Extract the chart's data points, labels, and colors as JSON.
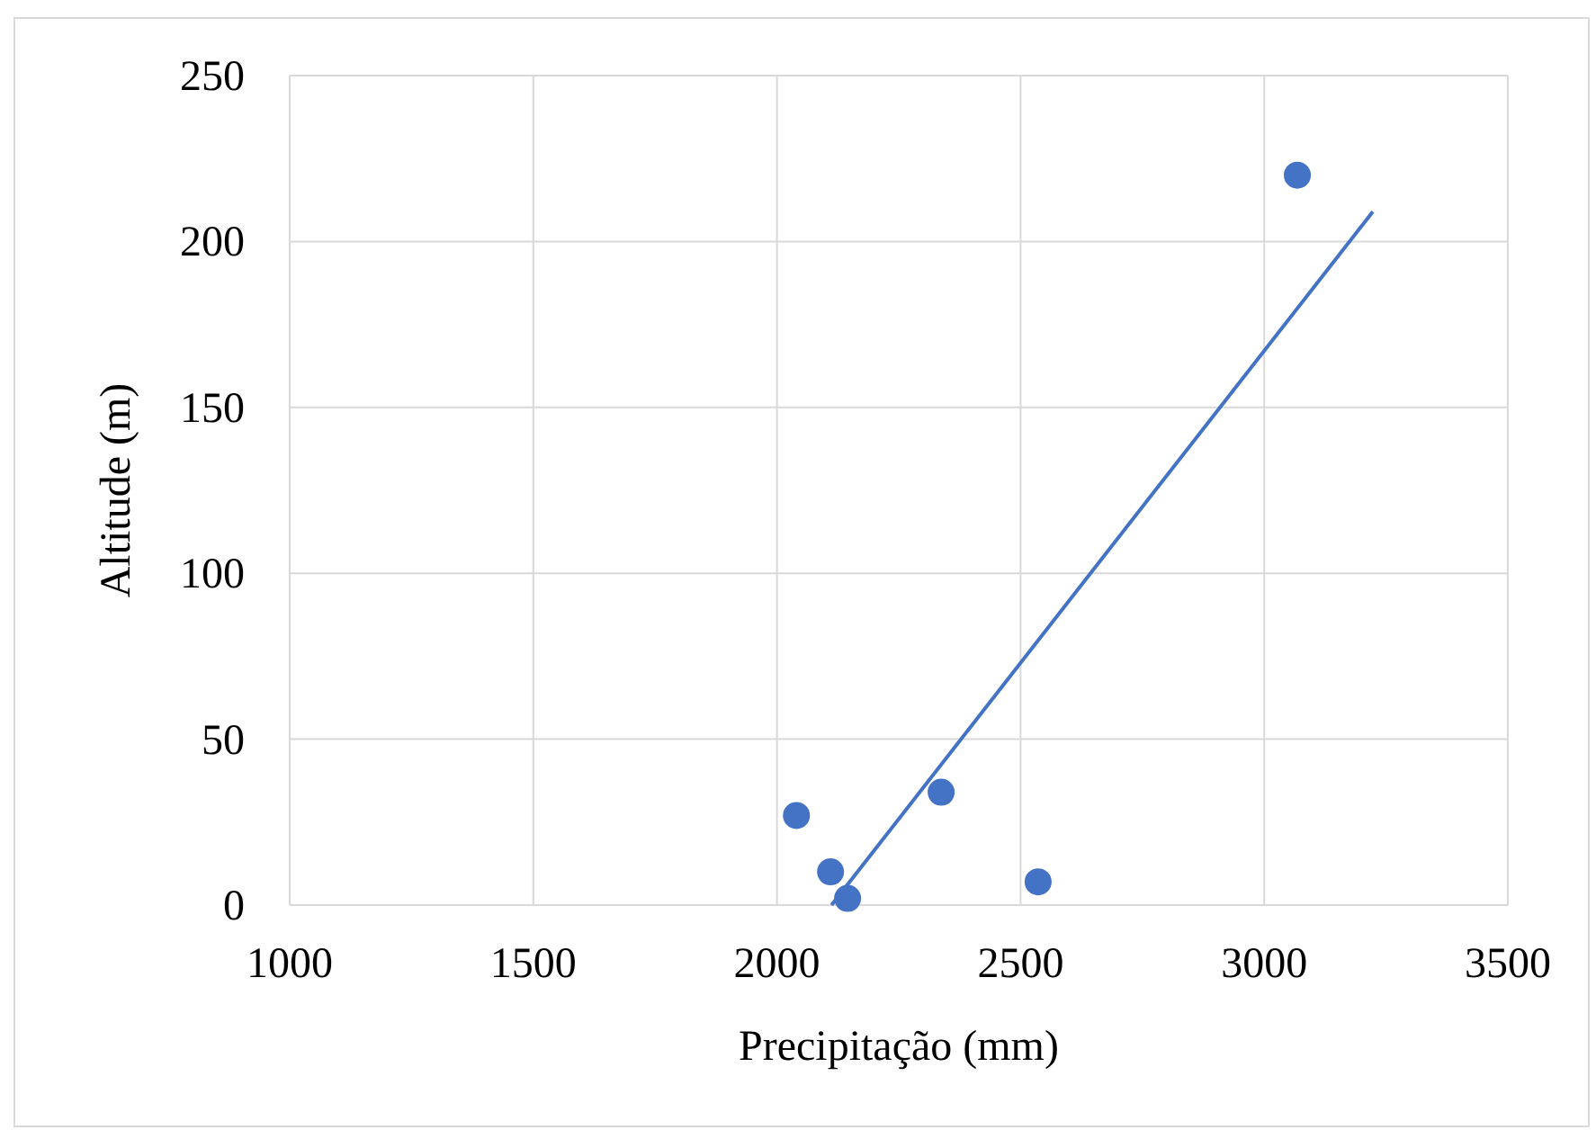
{
  "chart_data": {
    "type": "scatter",
    "xlabel": "Precipitação (mm)",
    "ylabel": "Altitude (m)",
    "xlim": [
      1000,
      3500
    ],
    "xticks": [
      1000,
      1500,
      2000,
      2500,
      3000,
      3500
    ],
    "ylim": [
      0,
      250
    ],
    "yticks": [
      0,
      50,
      100,
      150,
      200,
      250
    ],
    "grid": true,
    "series": [
      {
        "marker": "circle",
        "color": "#4472c4",
        "x": [
          2040,
          2110,
          2145,
          2337,
          2536,
          3068
        ],
        "values": [
          27,
          10,
          2,
          34,
          7,
          220
        ]
      },
      {
        "type": "line",
        "marker": "none",
        "color": "#4472c4",
        "x": [
          2112,
          3223
        ],
        "values": [
          0,
          209
        ]
      }
    ]
  }
}
